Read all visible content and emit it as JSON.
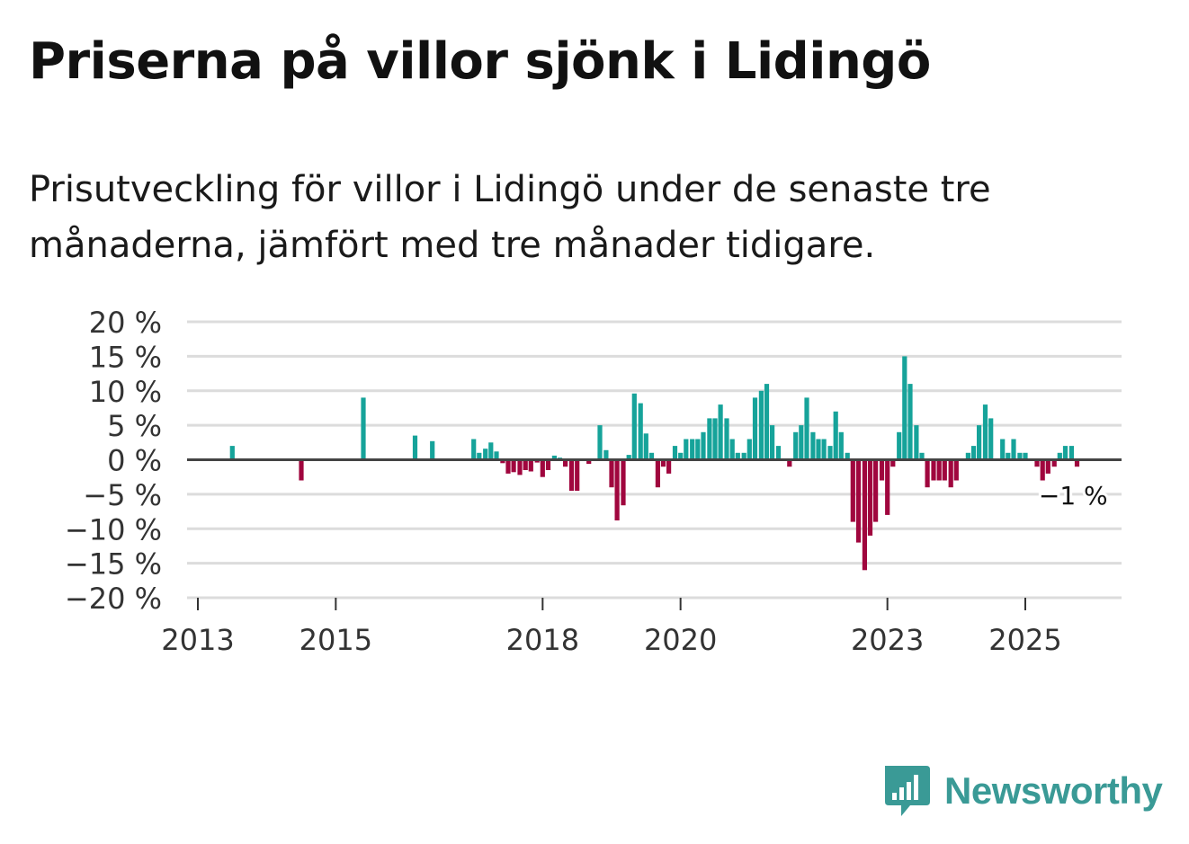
{
  "title": "Priserna på villor sjönk i Lidingö",
  "subtitle": "Prisutveckling för villor i Lidingö under de senaste tre månaderna, jämfört med tre månader tidigare.",
  "brand": "Newsworthy",
  "colors": {
    "positive": "#16a39a",
    "negative": "#a0063e",
    "brand": "#3a9a96"
  },
  "chart_data": {
    "type": "bar",
    "ylim": [
      -20,
      20
    ],
    "yticks": [
      20,
      15,
      10,
      5,
      0,
      -5,
      -10,
      -15,
      -20
    ],
    "ytick_labels": [
      "20 %",
      "15 %",
      "10 %",
      "5 %",
      "0 %",
      "−5 %",
      "−10 %",
      "−15 %",
      "−20 %"
    ],
    "x_start": 2013.0,
    "x_end": 2026.4,
    "xticks": [
      2013,
      2015,
      2018,
      2020,
      2023,
      2025
    ],
    "xtick_labels": [
      "2013",
      "2015",
      "2018",
      "2020",
      "2023",
      "2025"
    ],
    "annotation": {
      "label": "−1 %",
      "x": 2025.7,
      "value": -1
    },
    "series": [
      {
        "name": "Prisutveckling",
        "points": [
          {
            "x": 2013.5,
            "y": 2
          },
          {
            "x": 2014.5,
            "y": -3
          },
          {
            "x": 2015.4,
            "y": 9
          },
          {
            "x": 2016.15,
            "y": 3.5
          },
          {
            "x": 2016.4,
            "y": 2.7
          },
          {
            "x": 2017.0,
            "y": 3
          },
          {
            "x": 2017.08,
            "y": 1
          },
          {
            "x": 2017.17,
            "y": 1.6
          },
          {
            "x": 2017.25,
            "y": 2.5
          },
          {
            "x": 2017.33,
            "y": 1.2
          },
          {
            "x": 2017.42,
            "y": -0.5
          },
          {
            "x": 2017.5,
            "y": -2
          },
          {
            "x": 2017.58,
            "y": -1.8
          },
          {
            "x": 2017.67,
            "y": -2.2
          },
          {
            "x": 2017.75,
            "y": -1.5
          },
          {
            "x": 2017.83,
            "y": -1.7
          },
          {
            "x": 2017.92,
            "y": -0.4
          },
          {
            "x": 2018.0,
            "y": -2.5
          },
          {
            "x": 2018.08,
            "y": -1.5
          },
          {
            "x": 2018.17,
            "y": 0.6
          },
          {
            "x": 2018.25,
            "y": 0.3
          },
          {
            "x": 2018.33,
            "y": -1
          },
          {
            "x": 2018.42,
            "y": -4.5
          },
          {
            "x": 2018.5,
            "y": -4.5
          },
          {
            "x": 2018.67,
            "y": -0.6
          },
          {
            "x": 2018.83,
            "y": 5
          },
          {
            "x": 2018.92,
            "y": 1.4
          },
          {
            "x": 2019.0,
            "y": -4
          },
          {
            "x": 2019.08,
            "y": -8.8
          },
          {
            "x": 2019.17,
            "y": -6.6
          },
          {
            "x": 2019.25,
            "y": 0.7
          },
          {
            "x": 2019.33,
            "y": 9.6
          },
          {
            "x": 2019.42,
            "y": 8.2
          },
          {
            "x": 2019.5,
            "y": 3.8
          },
          {
            "x": 2019.58,
            "y": 1
          },
          {
            "x": 2019.67,
            "y": -4
          },
          {
            "x": 2019.75,
            "y": -1
          },
          {
            "x": 2019.83,
            "y": -2
          },
          {
            "x": 2019.92,
            "y": 2
          },
          {
            "x": 2020.0,
            "y": 1
          },
          {
            "x": 2020.08,
            "y": 3
          },
          {
            "x": 2020.17,
            "y": 3
          },
          {
            "x": 2020.25,
            "y": 3
          },
          {
            "x": 2020.33,
            "y": 4
          },
          {
            "x": 2020.42,
            "y": 6
          },
          {
            "x": 2020.5,
            "y": 6
          },
          {
            "x": 2020.58,
            "y": 8
          },
          {
            "x": 2020.67,
            "y": 6
          },
          {
            "x": 2020.75,
            "y": 3
          },
          {
            "x": 2020.83,
            "y": 1
          },
          {
            "x": 2020.92,
            "y": 1
          },
          {
            "x": 2021.0,
            "y": 3
          },
          {
            "x": 2021.08,
            "y": 9
          },
          {
            "x": 2021.17,
            "y": 10
          },
          {
            "x": 2021.25,
            "y": 11
          },
          {
            "x": 2021.33,
            "y": 5
          },
          {
            "x": 2021.42,
            "y": 2
          },
          {
            "x": 2021.58,
            "y": -1
          },
          {
            "x": 2021.67,
            "y": 4
          },
          {
            "x": 2021.75,
            "y": 5
          },
          {
            "x": 2021.83,
            "y": 9
          },
          {
            "x": 2021.92,
            "y": 4
          },
          {
            "x": 2022.0,
            "y": 3
          },
          {
            "x": 2022.08,
            "y": 3
          },
          {
            "x": 2022.17,
            "y": 2
          },
          {
            "x": 2022.25,
            "y": 7
          },
          {
            "x": 2022.33,
            "y": 4
          },
          {
            "x": 2022.42,
            "y": 1
          },
          {
            "x": 2022.5,
            "y": -9
          },
          {
            "x": 2022.58,
            "y": -12
          },
          {
            "x": 2022.67,
            "y": -16
          },
          {
            "x": 2022.75,
            "y": -11
          },
          {
            "x": 2022.83,
            "y": -9
          },
          {
            "x": 2022.92,
            "y": -3
          },
          {
            "x": 2023.0,
            "y": -8
          },
          {
            "x": 2023.08,
            "y": -1
          },
          {
            "x": 2023.17,
            "y": 4
          },
          {
            "x": 2023.25,
            "y": 15
          },
          {
            "x": 2023.33,
            "y": 11
          },
          {
            "x": 2023.42,
            "y": 5
          },
          {
            "x": 2023.5,
            "y": 1
          },
          {
            "x": 2023.58,
            "y": -4
          },
          {
            "x": 2023.67,
            "y": -3
          },
          {
            "x": 2023.75,
            "y": -3
          },
          {
            "x": 2023.83,
            "y": -3
          },
          {
            "x": 2023.92,
            "y": -4
          },
          {
            "x": 2024.0,
            "y": -3
          },
          {
            "x": 2024.17,
            "y": 1
          },
          {
            "x": 2024.25,
            "y": 2
          },
          {
            "x": 2024.33,
            "y": 5
          },
          {
            "x": 2024.42,
            "y": 8
          },
          {
            "x": 2024.5,
            "y": 6
          },
          {
            "x": 2024.67,
            "y": 3
          },
          {
            "x": 2024.75,
            "y": 1
          },
          {
            "x": 2024.83,
            "y": 3
          },
          {
            "x": 2024.92,
            "y": 1
          },
          {
            "x": 2025.0,
            "y": 1
          },
          {
            "x": 2025.17,
            "y": -1
          },
          {
            "x": 2025.25,
            "y": -3
          },
          {
            "x": 2025.33,
            "y": -2
          },
          {
            "x": 2025.42,
            "y": -1
          },
          {
            "x": 2025.5,
            "y": 1
          },
          {
            "x": 2025.58,
            "y": 2
          },
          {
            "x": 2025.67,
            "y": 2
          },
          {
            "x": 2025.75,
            "y": -1
          }
        ]
      }
    ]
  }
}
